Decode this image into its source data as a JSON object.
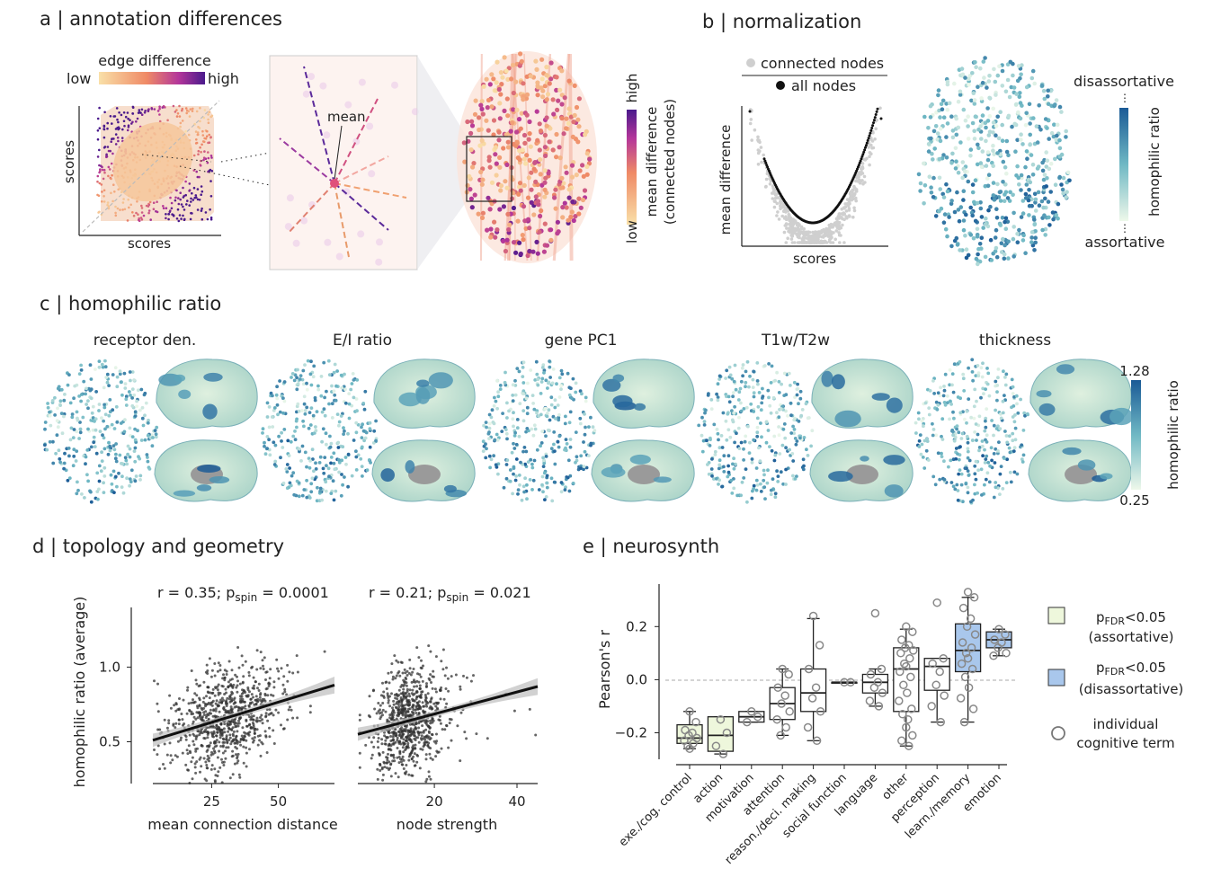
{
  "panels": {
    "a": {
      "title": "a | annotation differences",
      "edge_cbar_title": "edge difference",
      "edge_cbar_low": "low",
      "edge_cbar_high": "high",
      "scatter_xlabel": "scores",
      "scatter_ylabel": "scores",
      "zoom_label": "mean",
      "node_cbar_high": "high",
      "node_cbar_low": "low",
      "node_cbar_label1": "mean difference",
      "node_cbar_label2": "(connected nodes)"
    },
    "b": {
      "title": "b | normalization",
      "legend_connected": "connected nodes",
      "legend_all": "all nodes",
      "ylabel": "mean difference",
      "xlabel": "scores",
      "cbar_top": "disassortative",
      "cbar_bottom": "assortative",
      "cbar_label": "homophilic ratio"
    },
    "c": {
      "title": "c | homophilic ratio",
      "maps": [
        "receptor den.",
        "E/I ratio",
        "gene PC1",
        "T1w/T2w",
        "thickness"
      ],
      "cbar_max": "1.28",
      "cbar_min": "0.25",
      "cbar_label": "homophilic ratio"
    },
    "d": {
      "title": "d | topology and geometry",
      "ylabel": "homophilic ratio (average)",
      "left_stat_r": "r = 0.35; p",
      "left_stat_sub": "spin",
      "left_stat_p": " = 0.0001",
      "right_stat_r": "r = 0.21; p",
      "right_stat_sub": "spin",
      "right_stat_p": " = 0.021",
      "left_xlabel": "mean connection distance",
      "right_xlabel": "node strength"
    },
    "e": {
      "title": "e | neurosynth",
      "legend_assort_line1": "p",
      "legend_assort_sub": "FDR",
      "legend_assort_thr": "<0.05",
      "legend_assort_line2": "(assortative)",
      "legend_disassort_line1": "p",
      "legend_disassort_sub": "FDR",
      "legend_disassort_thr": "<0.05",
      "legend_disassort_line2": "(disassortative)",
      "legend_points_line1": "individual",
      "legend_points_line2": "cognitive term"
    }
  },
  "colors": {
    "assortative": "#eef7dc",
    "disassortative": "#a9c7ec",
    "homophilic_low": "#e8f6e4",
    "homophilic_high": "#1a5a96",
    "diff_low": "#f7d8a0",
    "diff_high": "#4b1a8a"
  },
  "chart_data": [
    {
      "type": "scatter",
      "panel": "d-left",
      "xlabel": "mean connection distance",
      "ylabel": "homophilic ratio (average)",
      "xticks": [
        "25",
        "50"
      ],
      "yticks": [
        "0.5",
        "1.0"
      ],
      "xlim": [
        3,
        71
      ],
      "ylim": [
        0.22,
        1.4
      ],
      "fit": {
        "x": [
          3,
          71
        ],
        "y": [
          0.51,
          0.88
        ]
      },
      "n_points": 800,
      "annotation": "r = 0.35; pspin = 0.0001"
    },
    {
      "type": "scatter",
      "panel": "d-right",
      "xlabel": "node strength",
      "ylabel": "",
      "xticks": [
        "20",
        "40"
      ],
      "xlim": [
        1.5,
        45
      ],
      "ylim": [
        0.22,
        1.4
      ],
      "fit": {
        "x": [
          1.5,
          45
        ],
        "y": [
          0.55,
          0.87
        ]
      },
      "n_points": 800,
      "annotation": "r = 0.21; pspin = 0.021"
    },
    {
      "type": "box",
      "panel": "e",
      "ylabel": "Pearson's r",
      "yticks": [
        "−0.2",
        "0.0",
        "0.2"
      ],
      "ylim": [
        -0.3,
        0.36
      ],
      "categories": [
        "exe./cog. control",
        "action",
        "motivation",
        "attention",
        "reason./deci. making",
        "social function",
        "language",
        "other",
        "perception",
        "learn./memory",
        "emotion"
      ],
      "significance": [
        "assortative",
        "assortative",
        "none",
        "none",
        "none",
        "none",
        "none",
        "none",
        "none",
        "disassortative",
        "disassortative"
      ],
      "boxes": [
        {
          "q1": -0.24,
          "median": -0.22,
          "q3": -0.17,
          "low": -0.26,
          "high": -0.12
        },
        {
          "q1": -0.27,
          "median": -0.21,
          "q3": -0.14,
          "low": -0.28,
          "high": -0.14
        },
        {
          "q1": -0.16,
          "median": -0.14,
          "q3": -0.12,
          "low": -0.16,
          "high": -0.12
        },
        {
          "q1": -0.15,
          "median": -0.09,
          "q3": -0.03,
          "low": -0.21,
          "high": 0.04
        },
        {
          "q1": -0.12,
          "median": -0.05,
          "q3": 0.04,
          "low": -0.23,
          "high": 0.23
        },
        {
          "q1": -0.01,
          "median": -0.01,
          "q3": -0.01,
          "low": -0.01,
          "high": -0.01
        },
        {
          "q1": -0.05,
          "median": -0.01,
          "q3": 0.02,
          "low": -0.1,
          "high": 0.04
        },
        {
          "q1": -0.12,
          "median": 0.04,
          "q3": 0.12,
          "low": -0.25,
          "high": 0.19
        },
        {
          "q1": -0.04,
          "median": 0.05,
          "q3": 0.08,
          "low": -0.16,
          "high": 0.08
        },
        {
          "q1": 0.03,
          "median": 0.11,
          "q3": 0.21,
          "low": -0.16,
          "high": 0.31
        },
        {
          "q1": 0.12,
          "median": 0.15,
          "q3": 0.18,
          "low": 0.09,
          "high": 0.19
        }
      ],
      "points": [
        [
          -0.12,
          -0.16,
          -0.19,
          -0.2,
          -0.21,
          -0.22,
          -0.23,
          -0.24,
          -0.25,
          -0.26
        ],
        [
          -0.15,
          -0.2,
          -0.25,
          -0.28
        ],
        [
          -0.12,
          -0.14,
          -0.16
        ],
        [
          0.04,
          0.02,
          -0.03,
          -0.06,
          -0.09,
          -0.12,
          -0.15,
          -0.18,
          -0.21
        ],
        [
          0.24,
          0.13,
          0.04,
          -0.03,
          -0.07,
          -0.12,
          -0.18,
          -0.23
        ],
        [
          -0.01,
          -0.01
        ],
        [
          0.25,
          0.04,
          0.02,
          -0.01,
          -0.03,
          -0.05,
          -0.08,
          -0.1
        ],
        [
          0.2,
          0.18,
          0.15,
          0.13,
          0.12,
          0.11,
          0.1,
          0.08,
          0.06,
          0.05,
          0.03,
          0.01,
          -0.02,
          -0.05,
          -0.08,
          -0.11,
          -0.13,
          -0.15,
          -0.18,
          -0.21,
          -0.23,
          -0.25
        ],
        [
          0.29,
          0.08,
          0.06,
          0.03,
          -0.02,
          -0.06,
          -0.1,
          -0.16
        ],
        [
          0.33,
          0.31,
          0.27,
          0.23,
          0.2,
          0.17,
          0.14,
          0.12,
          0.1,
          0.08,
          0.06,
          0.04,
          0.01,
          -0.03,
          -0.07,
          -0.11,
          -0.16
        ],
        [
          0.19,
          0.17,
          0.15,
          0.14,
          0.12,
          0.1,
          0.09
        ]
      ]
    }
  ]
}
